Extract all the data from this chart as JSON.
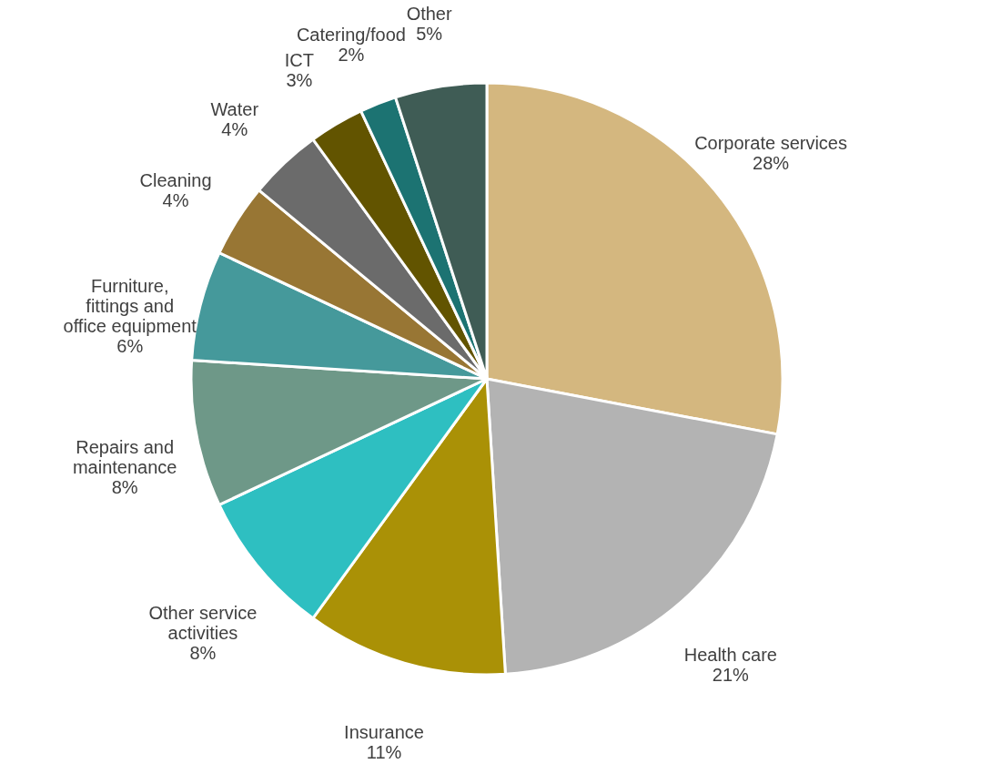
{
  "chart_data": {
    "type": "pie",
    "categories": [
      "Corporate services",
      "Health care",
      "Insurance",
      "Other service activities",
      "Repairs and maintenance",
      "Furniture, fittings and office equipment",
      "Cleaning",
      "Water",
      "ICT",
      "Catering/food",
      "Other"
    ],
    "values": [
      28,
      21,
      11,
      8,
      8,
      6,
      4,
      4,
      3,
      2,
      5
    ],
    "value_labels": [
      "28%",
      "21%",
      "11%",
      "8%",
      "8%",
      "6%",
      "4%",
      "4%",
      "3%",
      "2%",
      "5%"
    ],
    "colors": [
      "#d4b77f",
      "#b3b3b3",
      "#aa9106",
      "#2ebfc1",
      "#6e9888",
      "#45999b",
      "#987634",
      "#6b6b6b",
      "#625400",
      "#1c7372",
      "#3f5c55"
    ],
    "legend": false
  }
}
